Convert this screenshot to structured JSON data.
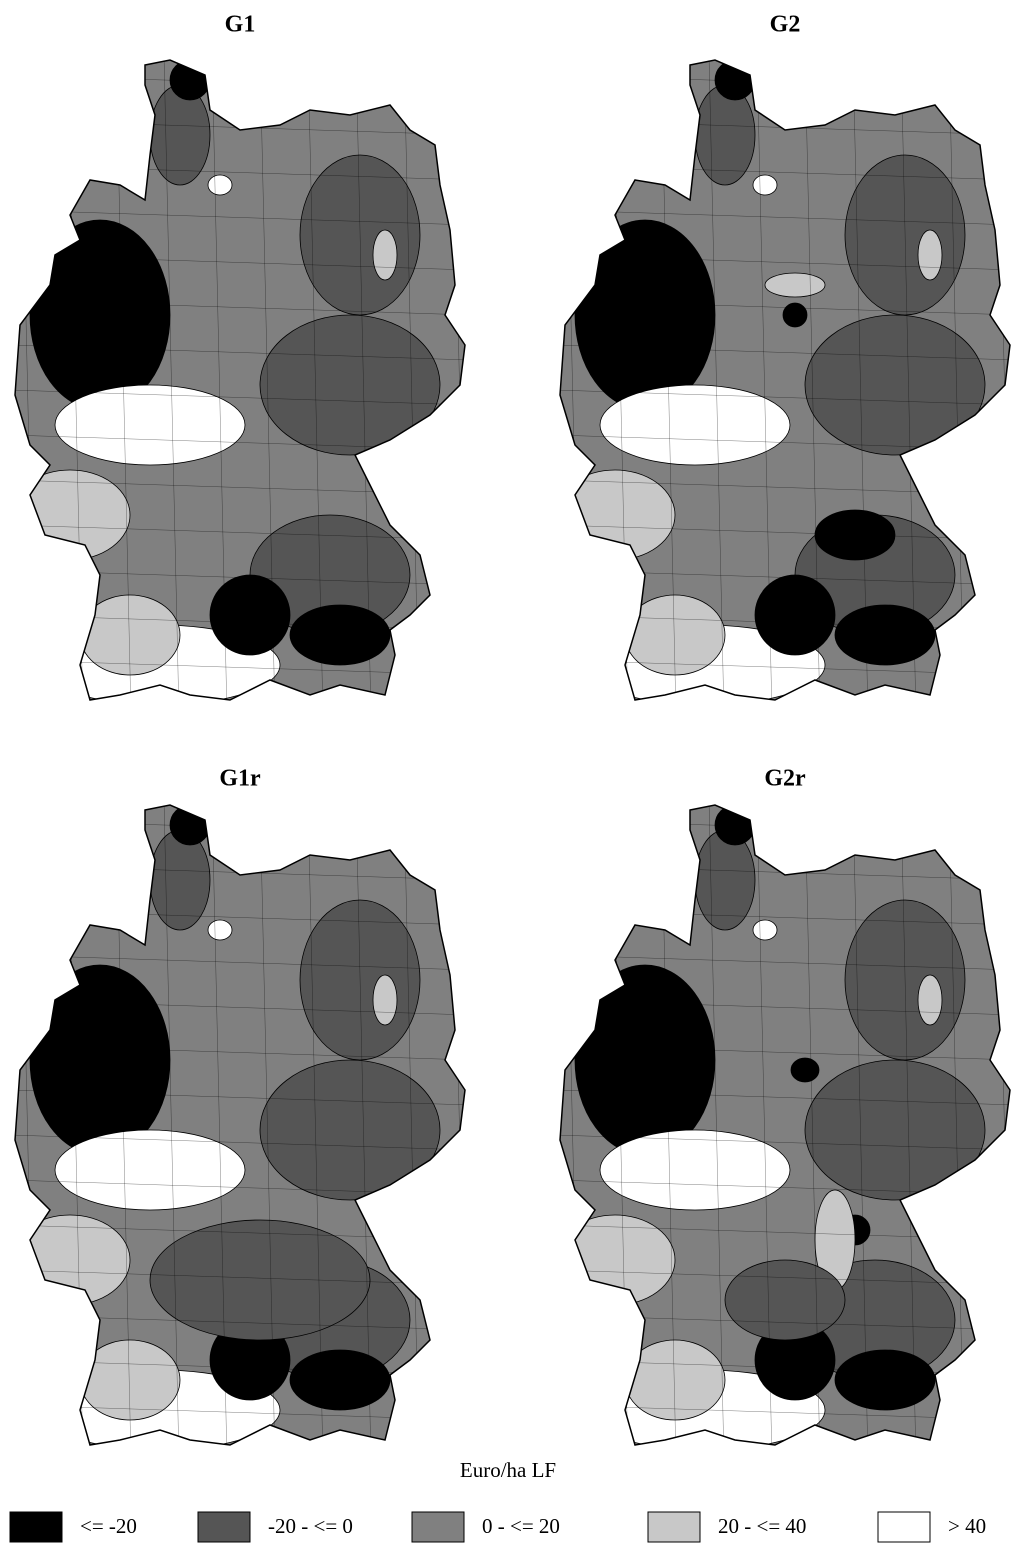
{
  "maps": [
    {
      "title": "G1"
    },
    {
      "title": "G2"
    },
    {
      "title": "G1r"
    },
    {
      "title": "G2r"
    }
  ],
  "legend": {
    "title": "Euro/ha LF",
    "items": [
      {
        "label": "<= -20",
        "color": "#000000"
      },
      {
        "label": "-20 - <= 0",
        "color": "#555555"
      },
      {
        "label": "0 - <= 20",
        "color": "#808080"
      },
      {
        "label": "20 - <= 40",
        "color": "#c8c8c8"
      },
      {
        "label": "> 40",
        "color": "#ffffff"
      }
    ]
  }
}
